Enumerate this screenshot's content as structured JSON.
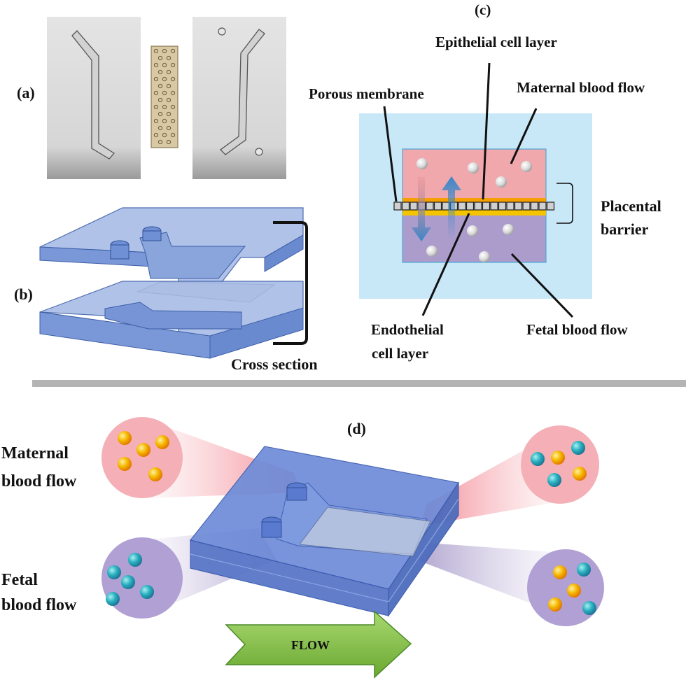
{
  "panels": {
    "a": "(a)",
    "b": "(b)",
    "c": "(c)",
    "d": "(d)"
  },
  "labels_b": {
    "cross_section": "Cross section"
  },
  "labels_c": {
    "epithelial": "Epithelial cell layer",
    "porous": "Porous membrane",
    "maternal": "Maternal blood flow",
    "placental_1": "Placental",
    "placental_2": "barrier",
    "endothelial_1": "Endothelial",
    "endothelial_2": "cell layer",
    "fetal": "Fetal blood flow"
  },
  "labels_d": {
    "maternal_1": "Maternal",
    "maternal_2": "blood flow",
    "fetal_1": "Fetal",
    "fetal_2": "blood flow",
    "flow": "FLOW"
  },
  "colors": {
    "maternal_pink": "#f0a0a8",
    "fetal_purple": "#a898cc",
    "chip_blue": "#5a7fd0",
    "membrane_gray": "#c8c8c8",
    "flow_green": "#8cc54a",
    "cell_yellow": "#f5c400",
    "cell_teal": "#2ab0c0",
    "bg_lightblue": "#c8e8f8",
    "arrow_blue": "#3a86c8"
  }
}
